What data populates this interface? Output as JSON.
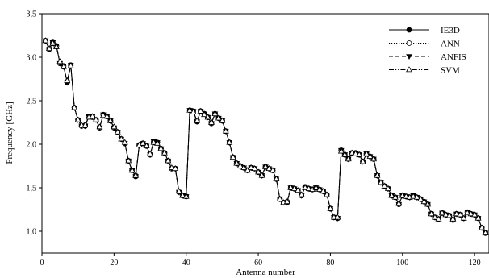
{
  "chart_data": {
    "type": "line",
    "title": "",
    "xlabel": "Antenna number",
    "ylabel": "Frequency [GHz]",
    "xlim": [
      0,
      124
    ],
    "ylim": [
      0.75,
      3.5
    ],
    "xticks": [
      0,
      20,
      40,
      60,
      80,
      100,
      120
    ],
    "yticks": [
      1.0,
      1.5,
      2.0,
      2.5,
      3.0,
      3.5
    ],
    "xtick_labels": [
      "0",
      "20",
      "40",
      "60",
      "80",
      "100",
      "120"
    ],
    "ytick_labels": [
      "1,0",
      "1,5",
      "2,0",
      "2,5",
      "3,0",
      "3,5"
    ],
    "grid": false,
    "legend_position": "top-right",
    "x": [
      1,
      2,
      3,
      4,
      5,
      6,
      7,
      8,
      9,
      10,
      11,
      12,
      13,
      14,
      15,
      16,
      17,
      18,
      19,
      20,
      21,
      22,
      23,
      24,
      25,
      26,
      27,
      28,
      29,
      30,
      31,
      32,
      33,
      34,
      35,
      36,
      37,
      38,
      39,
      40,
      41,
      42,
      43,
      44,
      45,
      46,
      47,
      48,
      49,
      50,
      51,
      52,
      53,
      54,
      55,
      56,
      57,
      58,
      59,
      60,
      61,
      62,
      63,
      64,
      65,
      66,
      67,
      68,
      69,
      70,
      71,
      72,
      73,
      74,
      75,
      76,
      77,
      78,
      79,
      80,
      81,
      82,
      83,
      84,
      85,
      86,
      87,
      88,
      89,
      90,
      91,
      92,
      93,
      94,
      95,
      96,
      97,
      98,
      99,
      100,
      101,
      102,
      103,
      104,
      105,
      106,
      107,
      108,
      109,
      110,
      111,
      112,
      113,
      114,
      115,
      116,
      117,
      118,
      119,
      120,
      121,
      122,
      123
    ],
    "series": [
      {
        "name": "IE3D",
        "marker": "filled-circle",
        "line_style": "solid",
        "values": [
          3.19,
          3.09,
          3.17,
          3.13,
          2.93,
          2.9,
          2.71,
          2.91,
          2.42,
          2.28,
          2.21,
          2.21,
          2.32,
          2.32,
          2.28,
          2.19,
          2.34,
          2.32,
          2.27,
          2.19,
          2.14,
          2.06,
          2.01,
          1.81,
          1.7,
          1.63,
          1.99,
          2.01,
          1.98,
          1.88,
          2.03,
          2.02,
          1.95,
          1.9,
          1.81,
          1.72,
          1.72,
          1.45,
          1.41,
          1.4,
          2.39,
          2.38,
          2.26,
          2.38,
          2.35,
          2.31,
          2.24,
          2.35,
          2.3,
          2.27,
          2.15,
          2.02,
          1.85,
          1.78,
          1.75,
          1.73,
          1.7,
          1.73,
          1.72,
          1.68,
          1.64,
          1.74,
          1.72,
          1.7,
          1.6,
          1.37,
          1.33,
          1.33,
          1.5,
          1.49,
          1.47,
          1.41,
          1.51,
          1.49,
          1.48,
          1.5,
          1.48,
          1.46,
          1.42,
          1.26,
          1.16,
          1.15,
          1.93,
          1.88,
          1.83,
          1.9,
          1.9,
          1.88,
          1.8,
          1.89,
          1.86,
          1.83,
          1.64,
          1.56,
          1.52,
          1.49,
          1.41,
          1.39,
          1.31,
          1.41,
          1.4,
          1.39,
          1.41,
          1.39,
          1.37,
          1.34,
          1.31,
          1.2,
          1.16,
          1.14,
          1.21,
          1.19,
          1.18,
          1.13,
          1.2,
          1.19,
          1.15,
          1.22,
          1.2,
          1.19,
          1.15,
          1.04,
          0.98
        ]
      },
      {
        "name": "ANN",
        "marker": "open-circle",
        "line_style": "dotted",
        "values": [
          3.19,
          3.1,
          3.16,
          3.13,
          2.93,
          2.89,
          2.72,
          2.9,
          2.42,
          2.28,
          2.21,
          2.22,
          2.32,
          2.31,
          2.28,
          2.19,
          2.34,
          2.32,
          2.27,
          2.19,
          2.14,
          2.06,
          2.01,
          1.81,
          1.7,
          1.64,
          1.99,
          2.01,
          1.98,
          1.88,
          2.02,
          2.02,
          1.95,
          1.9,
          1.81,
          1.72,
          1.72,
          1.45,
          1.41,
          1.4,
          2.39,
          2.38,
          2.27,
          2.38,
          2.35,
          2.31,
          2.24,
          2.35,
          2.3,
          2.27,
          2.15,
          2.02,
          1.85,
          1.78,
          1.75,
          1.73,
          1.7,
          1.73,
          1.72,
          1.68,
          1.64,
          1.74,
          1.72,
          1.7,
          1.6,
          1.37,
          1.33,
          1.34,
          1.5,
          1.49,
          1.47,
          1.41,
          1.51,
          1.49,
          1.48,
          1.5,
          1.48,
          1.46,
          1.42,
          1.26,
          1.16,
          1.15,
          1.93,
          1.88,
          1.83,
          1.9,
          1.9,
          1.88,
          1.8,
          1.89,
          1.86,
          1.83,
          1.64,
          1.56,
          1.52,
          1.49,
          1.41,
          1.39,
          1.31,
          1.41,
          1.4,
          1.39,
          1.41,
          1.39,
          1.37,
          1.34,
          1.31,
          1.2,
          1.16,
          1.14,
          1.21,
          1.19,
          1.18,
          1.13,
          1.2,
          1.19,
          1.15,
          1.22,
          1.2,
          1.19,
          1.15,
          1.04,
          0.98
        ]
      },
      {
        "name": "ANFIS",
        "marker": "filled-triangle-down",
        "line_style": "dashed",
        "values": [
          3.19,
          3.09,
          3.17,
          3.13,
          2.93,
          2.9,
          2.71,
          2.91,
          2.42,
          2.28,
          2.21,
          2.21,
          2.32,
          2.32,
          2.28,
          2.19,
          2.34,
          2.32,
          2.27,
          2.19,
          2.14,
          2.06,
          2.01,
          1.81,
          1.7,
          1.63,
          1.99,
          2.01,
          1.98,
          1.88,
          2.03,
          2.02,
          1.95,
          1.9,
          1.81,
          1.72,
          1.72,
          1.45,
          1.41,
          1.4,
          2.39,
          2.38,
          2.26,
          2.38,
          2.35,
          2.31,
          2.24,
          2.35,
          2.3,
          2.27,
          2.15,
          2.02,
          1.85,
          1.78,
          1.75,
          1.73,
          1.7,
          1.73,
          1.72,
          1.68,
          1.64,
          1.74,
          1.72,
          1.7,
          1.6,
          1.37,
          1.33,
          1.33,
          1.5,
          1.49,
          1.47,
          1.41,
          1.51,
          1.49,
          1.48,
          1.5,
          1.48,
          1.46,
          1.42,
          1.26,
          1.16,
          1.15,
          1.93,
          1.88,
          1.83,
          1.9,
          1.9,
          1.88,
          1.8,
          1.89,
          1.86,
          1.83,
          1.64,
          1.56,
          1.52,
          1.49,
          1.41,
          1.39,
          1.31,
          1.41,
          1.4,
          1.39,
          1.41,
          1.39,
          1.37,
          1.34,
          1.31,
          1.2,
          1.16,
          1.14,
          1.21,
          1.19,
          1.18,
          1.13,
          1.2,
          1.19,
          1.15,
          1.22,
          1.2,
          1.19,
          1.15,
          1.04,
          0.98
        ]
      },
      {
        "name": "SVM",
        "marker": "open-triangle-up",
        "line_style": "dash-dot-dot",
        "values": [
          3.19,
          3.1,
          3.16,
          3.12,
          2.95,
          2.89,
          2.73,
          2.9,
          2.42,
          2.28,
          2.22,
          2.22,
          2.31,
          2.32,
          2.28,
          2.2,
          2.33,
          2.32,
          2.27,
          2.2,
          2.14,
          2.06,
          2.02,
          1.81,
          1.7,
          1.64,
          1.99,
          2.01,
          1.98,
          1.89,
          2.02,
          2.01,
          1.95,
          1.9,
          1.81,
          1.73,
          1.72,
          1.46,
          1.41,
          1.4,
          2.39,
          2.37,
          2.27,
          2.38,
          2.34,
          2.31,
          2.25,
          2.35,
          2.3,
          2.27,
          2.15,
          2.02,
          1.85,
          1.78,
          1.75,
          1.73,
          1.7,
          1.73,
          1.72,
          1.68,
          1.64,
          1.74,
          1.72,
          1.7,
          1.6,
          1.37,
          1.33,
          1.34,
          1.5,
          1.49,
          1.47,
          1.42,
          1.5,
          1.49,
          1.48,
          1.5,
          1.48,
          1.46,
          1.42,
          1.26,
          1.16,
          1.16,
          1.92,
          1.88,
          1.83,
          1.9,
          1.89,
          1.88,
          1.8,
          1.89,
          1.86,
          1.83,
          1.64,
          1.56,
          1.52,
          1.49,
          1.41,
          1.39,
          1.32,
          1.41,
          1.4,
          1.39,
          1.4,
          1.39,
          1.37,
          1.34,
          1.31,
          1.2,
          1.16,
          1.14,
          1.21,
          1.19,
          1.18,
          1.14,
          1.2,
          1.19,
          1.15,
          1.21,
          1.2,
          1.19,
          1.15,
          1.04,
          0.98
        ]
      }
    ]
  }
}
